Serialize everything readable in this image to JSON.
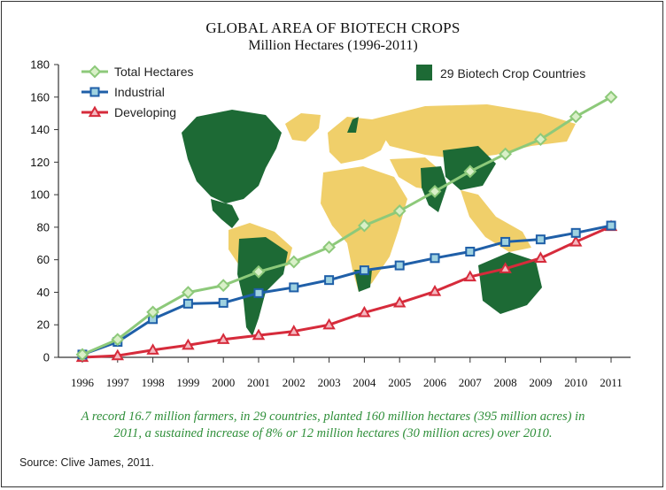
{
  "chart_data": {
    "type": "line",
    "title": "GLOBAL AREA OF BIOTECH CROPS",
    "subtitle": "Million Hectares (1996-2011)",
    "categories": [
      "1996",
      "1997",
      "1998",
      "1999",
      "2000",
      "2001",
      "2002",
      "2003",
      "2004",
      "2005",
      "2006",
      "2007",
      "2008",
      "2009",
      "2010",
      "2011"
    ],
    "ylim": [
      0,
      180
    ],
    "yticks": [
      0,
      20,
      40,
      60,
      80,
      100,
      120,
      140,
      160,
      180
    ],
    "grid": false,
    "legend_position": "top-left",
    "series": [
      {
        "name": "Total Hectares",
        "color": "#8dc97a",
        "marker": "diamond",
        "values": [
          1.7,
          11,
          27.8,
          39.9,
          44.2,
          52.6,
          58.7,
          67.7,
          81.0,
          90.0,
          102.0,
          114.3,
          125.0,
          134.0,
          148.0,
          160.0
        ]
      },
      {
        "name": "Industrial",
        "color": "#1f5fa8",
        "marker": "square",
        "values": [
          1.7,
          9.5,
          23.5,
          33.0,
          33.5,
          39.5,
          43.0,
          47.5,
          53.5,
          56.5,
          61.0,
          65.0,
          71.0,
          72.5,
          76.5,
          81.0
        ]
      },
      {
        "name": "Developing",
        "color": "#d62b3b",
        "marker": "triangle",
        "values": [
          0,
          1.0,
          4.5,
          7.5,
          11.0,
          13.5,
          16.0,
          20.0,
          27.5,
          33.5,
          40.5,
          49.5,
          54.5,
          61.0,
          71.0,
          80.5
        ]
      }
    ],
    "map_legend": {
      "label": "29 Biotech Crop Countries",
      "color": "#1d6a35"
    }
  },
  "background_map": {
    "land_color": "#f0cf6a",
    "biotech_color": "#1d6a35"
  },
  "caption": {
    "line1": "A record 16.7 million farmers, in 29 countries, planted 160 million hectares (395 million acres) in",
    "line2": "2011, a sustained increase of 8% or 12 million hectares (30 million acres) over 2010."
  },
  "source": "Source: Clive James, 2011."
}
